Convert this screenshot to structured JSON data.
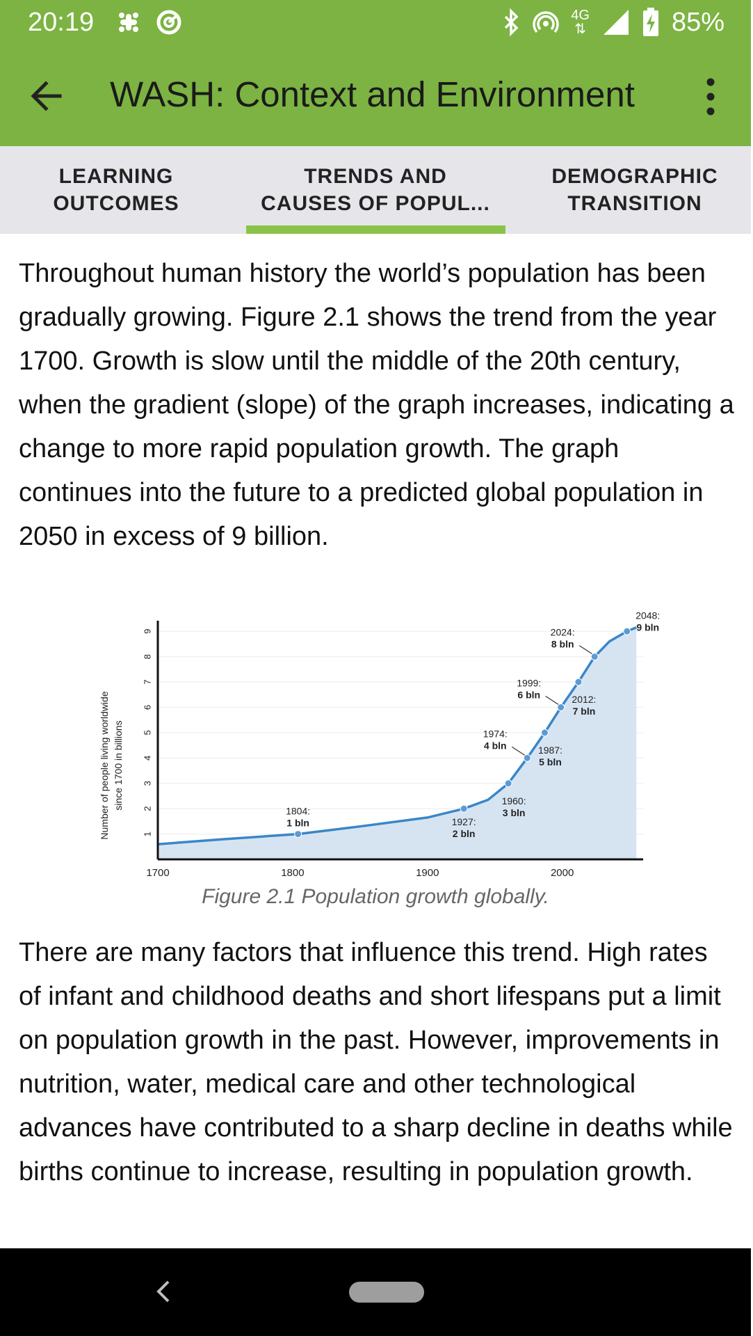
{
  "status_bar": {
    "time": "20:19",
    "network": "4G",
    "battery": "85%",
    "icons": [
      "slack-icon",
      "sync-icon",
      "bluetooth-icon",
      "hotspot-icon",
      "network-4g-icon",
      "signal-icon",
      "battery-charging-icon"
    ]
  },
  "app_bar": {
    "title": "WASH: Context and Environment",
    "back_icon": "arrow-left-icon",
    "menu_icon": "more-vert-icon"
  },
  "tabs": [
    {
      "line1": "LEARNING",
      "line2": "OUTCOMES"
    },
    {
      "line1": "TRENDS AND",
      "line2": "CAUSES OF POPUL..."
    },
    {
      "line1": "DEMOGRAPHIC",
      "line2": "TRANSITION"
    }
  ],
  "selected_tab": 1,
  "content": {
    "paragraph1": "Throughout human history the world’s population has been gradually growing. Figure 2.1 shows the trend from the year 1700. Growth is slow until the middle of the 20th century, when the gradient (slope) of the graph increases, indicating a change to more rapid population growth. The graph continues into the future to a predicted global population in 2050 in excess of 9 billion.",
    "figure_caption": "Figure 2.1 Population growth globally.",
    "paragraph2": "There are many factors that influence this trend. High rates of infant and childhood deaths and short lifespans put a limit on population growth in the past. However, improvements in nutrition, water, medical care and other technological advances have contributed to a sharp decline in deaths while births continue to increase, resulting in population growth."
  },
  "chart_data": {
    "type": "area",
    "ylabel": "Number of people living worldwide since 1700 in billions",
    "x_ticks": [
      "1700",
      "1800",
      "1900",
      "2000"
    ],
    "y_ticks": [
      "1",
      "2",
      "3",
      "4",
      "5",
      "6",
      "7",
      "8",
      "9"
    ],
    "xlim": [
      1700,
      2060
    ],
    "ylim": [
      0,
      9.2
    ],
    "grid": true,
    "line_color": "#3a86c8",
    "fill_color": "#d6e4f2",
    "curve": [
      {
        "x": 1700,
        "y": 0.6
      },
      {
        "x": 1750,
        "y": 0.8
      },
      {
        "x": 1804,
        "y": 1
      },
      {
        "x": 1850,
        "y": 1.3
      },
      {
        "x": 1900,
        "y": 1.65
      },
      {
        "x": 1927,
        "y": 2
      },
      {
        "x": 1945,
        "y": 2.35
      },
      {
        "x": 1960,
        "y": 3
      },
      {
        "x": 1974,
        "y": 4
      },
      {
        "x": 1987,
        "y": 5
      },
      {
        "x": 1999,
        "y": 6
      },
      {
        "x": 2012,
        "y": 7
      },
      {
        "x": 2024,
        "y": 8
      },
      {
        "x": 2035,
        "y": 8.6
      },
      {
        "x": 2048,
        "y": 9
      },
      {
        "x": 2055,
        "y": 9.15
      }
    ],
    "milestones": [
      {
        "x": 1804,
        "y": 1,
        "year": "1804:",
        "value": "1 bln",
        "pos": "above"
      },
      {
        "x": 1927,
        "y": 2,
        "year": "1927:",
        "value": "2 bln",
        "pos": "below"
      },
      {
        "x": 1960,
        "y": 3,
        "year": "1960:",
        "value": "3 bln",
        "pos": "below-right"
      },
      {
        "x": 1974,
        "y": 4,
        "year": "1974:",
        "value": "4 bln",
        "pos": "above-left"
      },
      {
        "x": 1987,
        "y": 5,
        "year": "1987:",
        "value": "5 bln",
        "pos": "below-right"
      },
      {
        "x": 1999,
        "y": 6,
        "year": "1999:",
        "value": "6 bln",
        "pos": "above-left"
      },
      {
        "x": 2012,
        "y": 7,
        "year": "2012:",
        "value": "7 bln",
        "pos": "below-right"
      },
      {
        "x": 2024,
        "y": 8,
        "year": "2024:",
        "value": "8 bln",
        "pos": "above-left"
      },
      {
        "x": 2048,
        "y": 9,
        "year": "2048:",
        "value": "9 bln",
        "pos": "right"
      }
    ]
  }
}
